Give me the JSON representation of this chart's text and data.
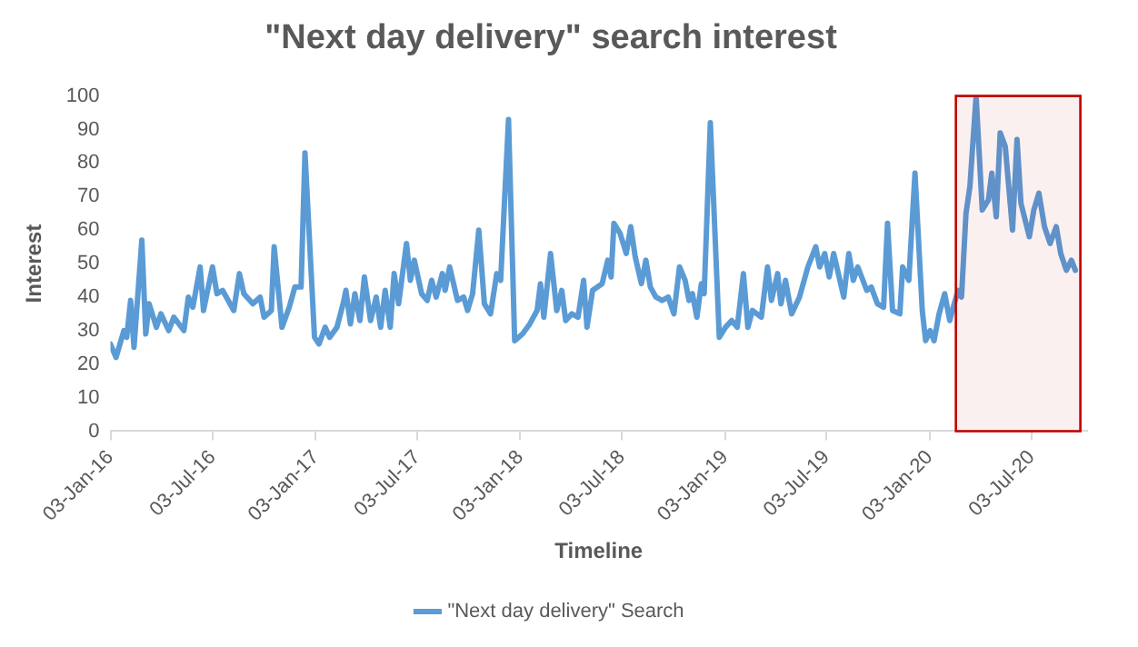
{
  "chart_data": {
    "type": "line",
    "title": "\"Next day delivery\" search interest",
    "xlabel": "Timeline",
    "ylabel": "Interest",
    "x": [
      "2016-01-03",
      "2016-01-13",
      "2016-01-27",
      "2016-02-01",
      "2016-02-08",
      "2016-02-14",
      "2016-02-28",
      "2016-03-06",
      "2016-03-12",
      "2016-03-25",
      "2016-04-02",
      "2016-04-16",
      "2016-04-25",
      "2016-05-13",
      "2016-05-21",
      "2016-05-29",
      "2016-06-11",
      "2016-06-17",
      "2016-07-03",
      "2016-07-11",
      "2016-07-21",
      "2016-08-10",
      "2016-08-20",
      "2016-08-28",
      "2016-09-13",
      "2016-09-26",
      "2016-10-03",
      "2016-10-16",
      "2016-10-21",
      "2016-11-04",
      "2016-11-17",
      "2016-11-27",
      "2016-12-08",
      "2016-12-15",
      "2017-01-01",
      "2017-01-09",
      "2017-01-20",
      "2017-01-28",
      "2017-02-10",
      "2017-02-21",
      "2017-02-26",
      "2017-03-06",
      "2017-03-14",
      "2017-03-23",
      "2017-03-31",
      "2017-04-11",
      "2017-04-21",
      "2017-04-29",
      "2017-05-07",
      "2017-05-16",
      "2017-05-23",
      "2017-05-31",
      "2017-06-14",
      "2017-06-21",
      "2017-06-28",
      "2017-07-11",
      "2017-07-21",
      "2017-07-29",
      "2017-08-06",
      "2017-08-17",
      "2017-08-22",
      "2017-08-30",
      "2017-09-13",
      "2017-09-24",
      "2017-10-01",
      "2017-10-10",
      "2017-10-21",
      "2017-10-31",
      "2017-11-11",
      "2017-11-22",
      "2017-11-29",
      "2017-12-13",
      "2017-12-24",
      "2018-01-07",
      "2018-01-20",
      "2018-02-02",
      "2018-02-08",
      "2018-02-14",
      "2018-02-26",
      "2018-03-09",
      "2018-03-18",
      "2018-03-25",
      "2018-04-05",
      "2018-04-16",
      "2018-04-26",
      "2018-05-02",
      "2018-05-12",
      "2018-05-29",
      "2018-06-08",
      "2018-06-14",
      "2018-06-19",
      "2018-06-30",
      "2018-07-11",
      "2018-07-19",
      "2018-07-27",
      "2018-08-07",
      "2018-08-15",
      "2018-08-23",
      "2018-09-02",
      "2018-09-13",
      "2018-09-24",
      "2018-10-04",
      "2018-10-14",
      "2018-10-24",
      "2018-10-31",
      "2018-11-06",
      "2018-11-14",
      "2018-11-22",
      "2018-11-27",
      "2018-12-08",
      "2018-12-24",
      "2019-01-04",
      "2019-01-15",
      "2019-01-25",
      "2019-02-05",
      "2019-02-13",
      "2019-02-21",
      "2019-03-09",
      "2019-03-20",
      "2019-03-27",
      "2019-04-07",
      "2019-04-13",
      "2019-04-21",
      "2019-05-02",
      "2019-05-16",
      "2019-05-31",
      "2019-06-14",
      "2019-06-21",
      "2019-06-30",
      "2019-07-08",
      "2019-07-16",
      "2019-08-03",
      "2019-08-12",
      "2019-08-20",
      "2019-08-28",
      "2019-09-13",
      "2019-09-21",
      "2019-10-02",
      "2019-10-13",
      "2019-10-20",
      "2019-10-29",
      "2019-11-11",
      "2019-11-16",
      "2019-11-27",
      "2019-12-08",
      "2019-12-21",
      "2019-12-27",
      "2020-01-04",
      "2020-01-11",
      "2020-01-20",
      "2020-01-30",
      "2020-02-08",
      "2020-02-16",
      "2020-02-23",
      "2020-02-29",
      "2020-03-08",
      "2020-03-15",
      "2020-03-26",
      "2020-04-06",
      "2020-04-17",
      "2020-04-23",
      "2020-05-01",
      "2020-05-08",
      "2020-05-17",
      "2020-05-30",
      "2020-06-07",
      "2020-06-14",
      "2020-06-29",
      "2020-07-07",
      "2020-07-16",
      "2020-07-26",
      "2020-08-05",
      "2020-08-16",
      "2020-08-24",
      "2020-09-03",
      "2020-09-12",
      "2020-09-19"
    ],
    "series": [
      {
        "name": "\"Next day delivery\" Search",
        "color": "#5b9bd5",
        "values": [
          26,
          22,
          30,
          28,
          39,
          25,
          57,
          29,
          38,
          31,
          35,
          30,
          34,
          30,
          40,
          37,
          49,
          36,
          49,
          41,
          42,
          36,
          47,
          41,
          38,
          40,
          34,
          36,
          55,
          31,
          37,
          43,
          43,
          83,
          28,
          26,
          31,
          28,
          31,
          38,
          42,
          32,
          41,
          33,
          46,
          33,
          40,
          31,
          42,
          31,
          47,
          38,
          56,
          45,
          51,
          41,
          39,
          45,
          40,
          47,
          42,
          49,
          39,
          40,
          36,
          41,
          60,
          38,
          35,
          47,
          45,
          93,
          27,
          29,
          32,
          36,
          44,
          34,
          53,
          36,
          42,
          33,
          35,
          34,
          45,
          31,
          42,
          44,
          51,
          46,
          62,
          59,
          53,
          61,
          52,
          44,
          51,
          43,
          40,
          39,
          40,
          35,
          49,
          45,
          39,
          41,
          34,
          44,
          41,
          92,
          28,
          31,
          33,
          31,
          47,
          31,
          36,
          34,
          49,
          39,
          47,
          38,
          45,
          35,
          40,
          49,
          55,
          49,
          53,
          46,
          53,
          40,
          53,
          45,
          49,
          42,
          43,
          38,
          37,
          62,
          36,
          35,
          49,
          45,
          77,
          36,
          27,
          30,
          27,
          35,
          41,
          33,
          38,
          42,
          40,
          65,
          73,
          100,
          66,
          69,
          77,
          64,
          89,
          85,
          60,
          87,
          68,
          58,
          66,
          71,
          61,
          56,
          61,
          53,
          48,
          51,
          48
        ]
      }
    ],
    "xlim": [
      "2016-01-03",
      "2020-10-10"
    ],
    "xticks": [
      {
        "value": "2016-01-03",
        "label": "03-Jan-16"
      },
      {
        "value": "2016-07-03",
        "label": "03-Jul-16"
      },
      {
        "value": "2017-01-03",
        "label": "03-Jan-17"
      },
      {
        "value": "2017-07-03",
        "label": "03-Jul-17"
      },
      {
        "value": "2018-01-03",
        "label": "03-Jan-18"
      },
      {
        "value": "2018-07-03",
        "label": "03-Jul-18"
      },
      {
        "value": "2019-01-03",
        "label": "03-Jan-19"
      },
      {
        "value": "2019-07-03",
        "label": "03-Jul-19"
      },
      {
        "value": "2020-01-03",
        "label": "03-Jan-20"
      },
      {
        "value": "2020-07-03",
        "label": "03-Jul-20"
      }
    ],
    "ylim": [
      0,
      100
    ],
    "yticks": [
      0,
      10,
      20,
      30,
      40,
      50,
      60,
      70,
      80,
      90,
      100
    ],
    "bands": [
      {
        "axis": "x",
        "from": "2020-02-19",
        "to": "2020-09-28",
        "color": "#c00000"
      }
    ],
    "grid": false,
    "legend": "bottom",
    "marker": "none",
    "line_style": "solid"
  }
}
